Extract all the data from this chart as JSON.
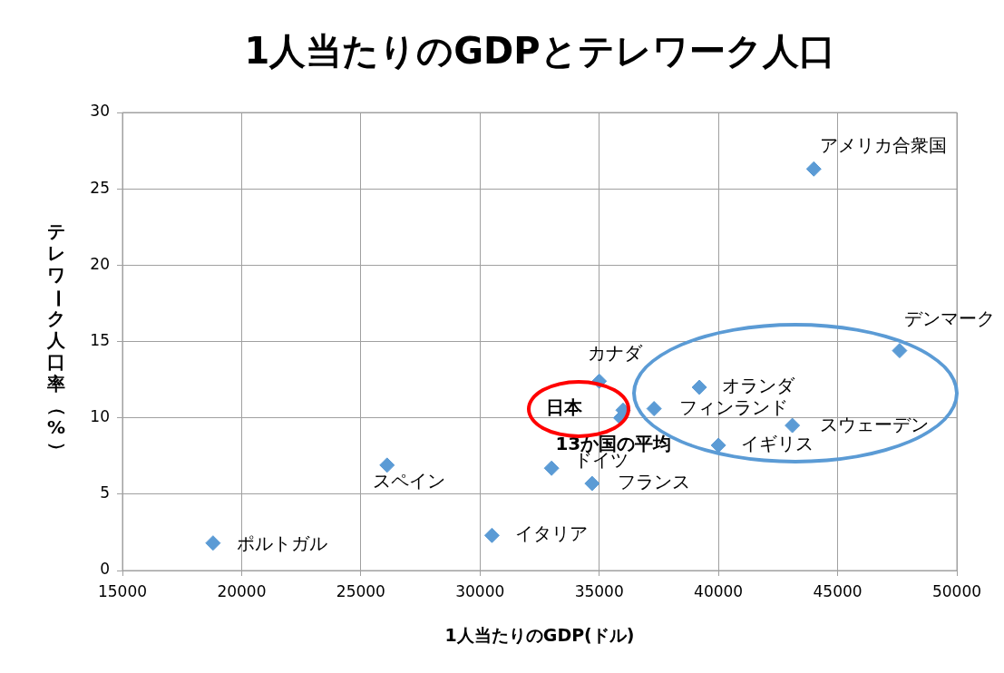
{
  "chart_data": {
    "type": "scatter",
    "title": "1人当たりのGDPとテレワーク人口",
    "xlabel": "1人当たりのGDP(ドル)",
    "ylabel": "テレワーク人口率（%）",
    "series": [
      {
        "color": "#5b9bd5",
        "x": [
          18800,
          26100,
          30500,
          33000,
          34700,
          35000,
          36000,
          35900,
          37300,
          39200,
          40000,
          43100,
          47600,
          44000
        ],
        "values": [
          1.8,
          6.9,
          2.3,
          6.7,
          5.7,
          12.4,
          10.5,
          10.0,
          10.6,
          12.0,
          8.2,
          9.5,
          14.4,
          26.3
        ]
      }
    ],
    "annotations": [
      {
        "text": "ポルトガル",
        "x": 18800,
        "y": 1.8
      },
      {
        "text": "スペイン",
        "x": 26100,
        "y": 6.9
      },
      {
        "text": "イタリア",
        "x": 30500,
        "y": 2.3
      },
      {
        "text": "ドイツ",
        "x": 33000,
        "y": 6.7
      },
      {
        "text": "フランス",
        "x": 34700,
        "y": 5.7
      },
      {
        "text": "カナダ",
        "x": 35000,
        "y": 12.4
      },
      {
        "text": "日本",
        "x": 36000,
        "y": 10.5
      },
      {
        "text": "13か国の平均",
        "x": 35900,
        "y": 10.0
      },
      {
        "text": "フィンランド",
        "x": 37300,
        "y": 10.6
      },
      {
        "text": "オランダ",
        "x": 39200,
        "y": 12.0
      },
      {
        "text": "イギリス",
        "x": 40000,
        "y": 8.2
      },
      {
        "text": "スウェーデン",
        "x": 43100,
        "y": 9.5
      },
      {
        "text": "デンマーク",
        "x": 47600,
        "y": 14.4
      },
      {
        "text": "アメリカ合衆国",
        "x": 44000,
        "y": 26.3
      }
    ],
    "xlim": [
      15000,
      50000
    ],
    "xticks": [
      15000,
      20000,
      25000,
      30000,
      35000,
      40000,
      45000,
      50000
    ],
    "ylim": [
      0,
      30
    ],
    "yticks": [
      0,
      5,
      10,
      15,
      20,
      25,
      30
    ],
    "grid": true,
    "legend": false,
    "marker": "diamond"
  }
}
